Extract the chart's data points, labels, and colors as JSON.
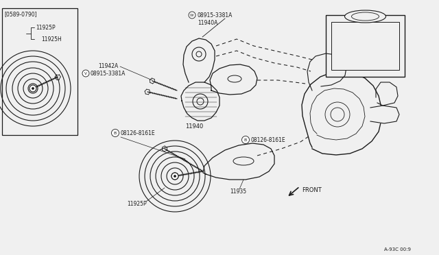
{
  "bg_color": "#f0f0f0",
  "line_color": "#1a1a1a",
  "ref_code": "A-93C 00:9",
  "labels": {
    "W_circ": "W",
    "W_part": "08915-3381A",
    "11940A": "11940A",
    "11942A": "11942A",
    "V_circ": "V",
    "V_part": "08915-3381A",
    "11940": "11940",
    "B1_circ": "B",
    "B1_part": "08126-8161E",
    "B2_circ": "B",
    "B2_part": "08126-8161E",
    "11925P_main": "11925P",
    "11935": "11935",
    "front": "FRONT",
    "box_label": "[0589-0790]",
    "11925P_box": "11925P",
    "11925H_box": "11925H"
  }
}
